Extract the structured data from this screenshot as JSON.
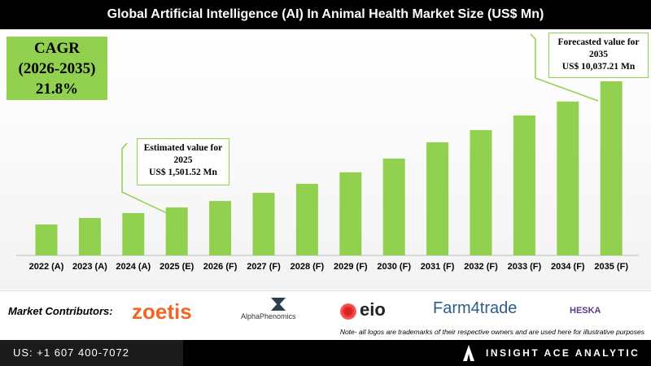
{
  "chart_data": {
    "type": "bar",
    "title": "Global Artificial Intelligence (AI) In Animal Health Market Size (US$ Mn)",
    "categories": [
      "2022 (A)",
      "2023 (A)",
      "2024 (A)",
      "2025 (E)",
      "2026 (F)",
      "2027 (F)",
      "2028 (F)",
      "2029 (F)",
      "2030 (F)",
      "2031 (F)",
      "2032 (F)",
      "2033 (F)",
      "2034 (F)",
      "2035 (F)"
    ],
    "values": [
      350,
      790,
      1120,
      1501.52,
      1940,
      2490,
      3100,
      3880,
      4810,
      5910,
      6740,
      7730,
      8670,
      10037.21
    ],
    "value_labels": [
      null,
      null,
      null,
      "US$ 1,501.52 Mn",
      null,
      null,
      null,
      null,
      null,
      null,
      null,
      null,
      null,
      "US$ 10,037.21 Mn"
    ],
    "color": "#92d050",
    "annotations": [
      {
        "index": 3,
        "text": "Estimated value for 2025"
      },
      {
        "index": 13,
        "text": "Forecasted value for 2035"
      }
    ]
  },
  "cagr": {
    "label": "CAGR",
    "period": "(2026-2035)",
    "value": "21.8%"
  },
  "contributors": {
    "label": "Market Contributors:",
    "logos": [
      "zoetis",
      "AlphaPhenomics",
      "eio",
      "Farm4trade",
      "HESKA"
    ],
    "note": "Note- all logos are trademarks of their respective owners and are used here for illustrative purposes"
  },
  "footer": {
    "phone": "US: +1 607 400-7072",
    "brand": "INSIGHT ACE ANALYTIC"
  }
}
